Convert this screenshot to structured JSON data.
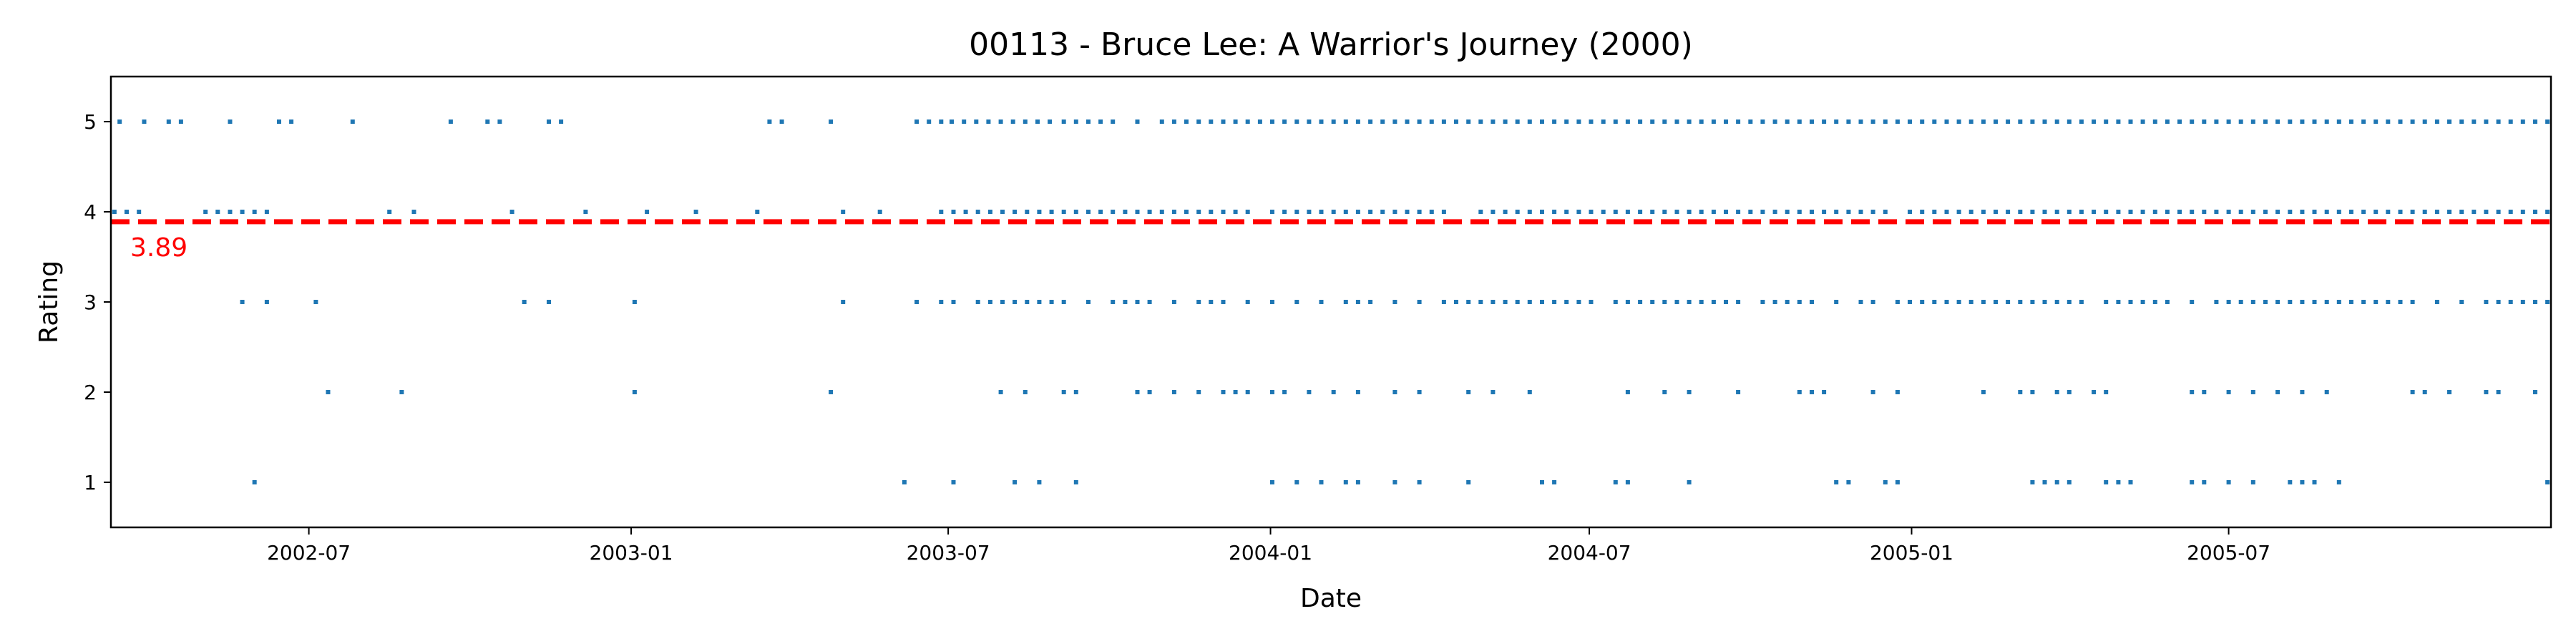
{
  "chart_data": {
    "type": "scatter",
    "title": "00113 - Bruce Lee: A Warrior's Journey (2000)",
    "xlabel": "Date",
    "ylabel": "Rating",
    "x_range": [
      "2002-03-10",
      "2006-01-01"
    ],
    "ylim": [
      0.5,
      5.5
    ],
    "x_ticks": [
      "2002-07",
      "2003-01",
      "2003-07",
      "2004-01",
      "2004-07",
      "2005-01",
      "2005-07"
    ],
    "y_ticks": [
      1,
      2,
      3,
      4,
      5
    ],
    "grid": false,
    "point_color": "#1f77b4",
    "mean": {
      "value": 3.89,
      "label": "3.89",
      "color": "#ff0000",
      "style": "dashed"
    },
    "series": [
      {
        "rating": 5,
        "dates": [
          "2002-03-15",
          "2002-03-29",
          "2002-04-12",
          "2002-04-19",
          "2002-05-17",
          "2002-06-14",
          "2002-06-21",
          "2002-07-26",
          "2002-09-20",
          "2002-10-11",
          "2002-10-18",
          "2002-11-15",
          "2002-11-22",
          "2003-03-21",
          "2003-03-28",
          "2003-04-25",
          "2003-06-13",
          "2003-06-20",
          "2003-06-27",
          "2003-07-03",
          "2003-07-10",
          "2003-07-17",
          "2003-07-24",
          "2003-07-31",
          "2003-08-07",
          "2003-08-14",
          "2003-08-21",
          "2003-08-28",
          "2003-09-05",
          "2003-09-12",
          "2003-09-19",
          "2003-09-26",
          "2003-10-03",
          "2003-10-17",
          "2003-10-31",
          "2003-11-07",
          "2003-11-14",
          "2003-11-21",
          "2003-11-28",
          "2003-12-05",
          "2003-12-12",
          "2003-12-19",
          "2003-12-26",
          "2004-01-02",
          "2004-01-09",
          "2004-01-16",
          "2004-01-23",
          "2004-01-30",
          "2004-02-06",
          "2004-02-13",
          "2004-02-20",
          "2004-02-27",
          "2004-03-05",
          "2004-03-12",
          "2004-03-19",
          "2004-03-26",
          "2004-04-02",
          "2004-04-09",
          "2004-04-16",
          "2004-04-23",
          "2004-04-30",
          "2004-05-07",
          "2004-05-14",
          "2004-05-21",
          "2004-05-28",
          "2004-06-04",
          "2004-06-11",
          "2004-06-18",
          "2004-06-25",
          "2004-07-02",
          "2004-07-09",
          "2004-07-16",
          "2004-07-23",
          "2004-07-30",
          "2004-08-06",
          "2004-08-13",
          "2004-08-20",
          "2004-08-27",
          "2004-09-03",
          "2004-09-10",
          "2004-09-17",
          "2004-09-24",
          "2004-10-01",
          "2004-10-08",
          "2004-10-15",
          "2004-10-22",
          "2004-10-29",
          "2004-11-05",
          "2004-11-12",
          "2004-11-19",
          "2004-11-26",
          "2004-12-03",
          "2004-12-10",
          "2004-12-17",
          "2004-12-24",
          "2004-12-31",
          "2005-01-07",
          "2005-01-14",
          "2005-01-21",
          "2005-01-28",
          "2005-02-04",
          "2005-02-11",
          "2005-02-18",
          "2005-02-25",
          "2005-03-04",
          "2005-03-11",
          "2005-03-18",
          "2005-03-25",
          "2005-04-01",
          "2005-04-08",
          "2005-04-15",
          "2005-04-22",
          "2005-04-29",
          "2005-05-06",
          "2005-05-13",
          "2005-05-20",
          "2005-05-27",
          "2005-06-03",
          "2005-06-10",
          "2005-06-17",
          "2005-06-24",
          "2005-07-01",
          "2005-07-08",
          "2005-07-15",
          "2005-07-22",
          "2005-07-29",
          "2005-08-05",
          "2005-08-12",
          "2005-08-19",
          "2005-08-26",
          "2005-09-02",
          "2005-09-09",
          "2005-09-16",
          "2005-09-23",
          "2005-09-30",
          "2005-10-07",
          "2005-10-14",
          "2005-10-21",
          "2005-10-28",
          "2005-11-04",
          "2005-11-11",
          "2005-11-18",
          "2005-11-25",
          "2005-12-02",
          "2005-12-09",
          "2005-12-16",
          "2005-12-23",
          "2005-12-30"
        ]
      },
      {
        "rating": 4,
        "dates": [
          "2002-03-12",
          "2002-03-19",
          "2002-03-26",
          "2002-05-03",
          "2002-05-10",
          "2002-05-17",
          "2002-05-24",
          "2002-05-31",
          "2002-06-07",
          "2002-08-16",
          "2002-08-30",
          "2002-10-25",
          "2002-12-06",
          "2003-01-10",
          "2003-02-07",
          "2003-03-14",
          "2003-05-02",
          "2003-05-23",
          "2003-06-27",
          "2003-07-04",
          "2003-07-11",
          "2003-07-18",
          "2003-07-25",
          "2003-08-01",
          "2003-08-08",
          "2003-08-15",
          "2003-08-22",
          "2003-08-29",
          "2003-09-05",
          "2003-09-12",
          "2003-09-19",
          "2003-09-26",
          "2003-10-03",
          "2003-10-10",
          "2003-10-17",
          "2003-10-24",
          "2003-10-31",
          "2003-11-07",
          "2003-11-14",
          "2003-11-21",
          "2003-11-28",
          "2003-12-05",
          "2003-12-12",
          "2003-12-19",
          "2004-01-02",
          "2004-01-09",
          "2004-01-16",
          "2004-01-23",
          "2004-01-30",
          "2004-02-06",
          "2004-02-13",
          "2004-02-20",
          "2004-02-27",
          "2004-03-05",
          "2004-03-12",
          "2004-03-19",
          "2004-03-26",
          "2004-04-02",
          "2004-04-09",
          "2004-04-30",
          "2004-05-07",
          "2004-05-14",
          "2004-05-21",
          "2004-05-28",
          "2004-06-04",
          "2004-06-11",
          "2004-06-18",
          "2004-06-25",
          "2004-07-02",
          "2004-07-09",
          "2004-07-16",
          "2004-07-23",
          "2004-07-30",
          "2004-08-06",
          "2004-08-13",
          "2004-08-20",
          "2004-08-27",
          "2004-09-03",
          "2004-09-10",
          "2004-09-17",
          "2004-09-24",
          "2004-10-01",
          "2004-10-08",
          "2004-10-15",
          "2004-10-22",
          "2004-10-29",
          "2004-11-05",
          "2004-11-12",
          "2004-11-19",
          "2004-11-26",
          "2004-12-03",
          "2004-12-10",
          "2004-12-17",
          "2004-12-31",
          "2005-01-07",
          "2005-01-14",
          "2005-01-21",
          "2005-01-28",
          "2005-02-04",
          "2005-02-11",
          "2005-02-18",
          "2005-02-25",
          "2005-03-04",
          "2005-03-11",
          "2005-03-18",
          "2005-03-25",
          "2005-04-01",
          "2005-04-08",
          "2005-04-15",
          "2005-04-22",
          "2005-04-29",
          "2005-05-06",
          "2005-05-13",
          "2005-05-20",
          "2005-05-27",
          "2005-06-03",
          "2005-06-10",
          "2005-06-17",
          "2005-06-24",
          "2005-07-01",
          "2005-07-08",
          "2005-07-15",
          "2005-07-22",
          "2005-07-29",
          "2005-08-05",
          "2005-08-12",
          "2005-08-19",
          "2005-08-26",
          "2005-09-02",
          "2005-09-09",
          "2005-09-16",
          "2005-09-23",
          "2005-09-30",
          "2005-10-07",
          "2005-10-14",
          "2005-10-21",
          "2005-10-28",
          "2005-11-04",
          "2005-11-11",
          "2005-11-18",
          "2005-11-25",
          "2005-12-02",
          "2005-12-09",
          "2005-12-16",
          "2005-12-23",
          "2005-12-30"
        ]
      },
      {
        "rating": 3,
        "dates": [
          "2002-05-24",
          "2002-06-07",
          "2002-07-05",
          "2002-11-01",
          "2002-11-15",
          "2003-01-03",
          "2003-05-02",
          "2003-06-13",
          "2003-06-27",
          "2003-07-04",
          "2003-07-18",
          "2003-07-25",
          "2003-08-01",
          "2003-08-08",
          "2003-08-15",
          "2003-08-22",
          "2003-08-29",
          "2003-09-05",
          "2003-09-19",
          "2003-10-03",
          "2003-10-10",
          "2003-10-17",
          "2003-10-24",
          "2003-11-07",
          "2003-11-21",
          "2003-11-28",
          "2003-12-05",
          "2003-12-19",
          "2004-01-02",
          "2004-01-16",
          "2004-01-30",
          "2004-02-13",
          "2004-02-20",
          "2004-02-27",
          "2004-03-12",
          "2004-03-26",
          "2004-04-09",
          "2004-04-16",
          "2004-04-23",
          "2004-04-30",
          "2004-05-07",
          "2004-05-14",
          "2004-05-21",
          "2004-05-28",
          "2004-06-04",
          "2004-06-11",
          "2004-06-18",
          "2004-06-25",
          "2004-07-02",
          "2004-07-16",
          "2004-07-23",
          "2004-07-30",
          "2004-08-06",
          "2004-08-13",
          "2004-08-20",
          "2004-08-27",
          "2004-09-03",
          "2004-09-10",
          "2004-09-17",
          "2004-09-24",
          "2004-10-08",
          "2004-10-15",
          "2004-10-22",
          "2004-10-29",
          "2004-11-05",
          "2004-11-19",
          "2004-12-03",
          "2004-12-10",
          "2004-12-24",
          "2004-12-31",
          "2005-01-07",
          "2005-01-14",
          "2005-01-21",
          "2005-01-28",
          "2005-02-04",
          "2005-02-11",
          "2005-02-18",
          "2005-02-25",
          "2005-03-04",
          "2005-03-11",
          "2005-03-18",
          "2005-03-25",
          "2005-04-01",
          "2005-04-08",
          "2005-04-22",
          "2005-04-29",
          "2005-05-06",
          "2005-05-13",
          "2005-05-20",
          "2005-05-27",
          "2005-06-10",
          "2005-06-24",
          "2005-07-01",
          "2005-07-08",
          "2005-07-15",
          "2005-07-22",
          "2005-07-29",
          "2005-08-05",
          "2005-08-12",
          "2005-08-19",
          "2005-08-26",
          "2005-09-02",
          "2005-09-09",
          "2005-09-16",
          "2005-09-23",
          "2005-09-30",
          "2005-10-07",
          "2005-10-14",
          "2005-10-28",
          "2005-11-11",
          "2005-11-25",
          "2005-12-02",
          "2005-12-09",
          "2005-12-16",
          "2005-12-23",
          "2005-12-30"
        ]
      },
      {
        "rating": 2,
        "dates": [
          "2002-07-12",
          "2002-08-23",
          "2003-01-03",
          "2003-04-25",
          "2003-07-31",
          "2003-08-14",
          "2003-09-05",
          "2003-09-12",
          "2003-10-17",
          "2003-10-24",
          "2003-11-07",
          "2003-11-21",
          "2003-12-05",
          "2003-12-12",
          "2003-12-19",
          "2004-01-02",
          "2004-01-09",
          "2004-01-23",
          "2004-02-06",
          "2004-02-20",
          "2004-03-12",
          "2004-03-26",
          "2004-04-23",
          "2004-05-07",
          "2004-05-28",
          "2004-07-23",
          "2004-08-13",
          "2004-08-27",
          "2004-09-24",
          "2004-10-29",
          "2004-11-05",
          "2004-11-12",
          "2004-12-10",
          "2004-12-24",
          "2005-02-11",
          "2005-03-04",
          "2005-03-11",
          "2005-03-25",
          "2005-04-01",
          "2005-04-15",
          "2005-04-22",
          "2005-06-10",
          "2005-06-17",
          "2005-07-01",
          "2005-07-15",
          "2005-07-29",
          "2005-08-12",
          "2005-08-26",
          "2005-10-14",
          "2005-10-21",
          "2005-11-04",
          "2005-11-25",
          "2005-12-02",
          "2005-12-23"
        ]
      },
      {
        "rating": 1,
        "dates": [
          "2002-05-31",
          "2003-06-06",
          "2003-07-04",
          "2003-08-08",
          "2003-08-22",
          "2003-09-12",
          "2004-01-02",
          "2004-01-16",
          "2004-01-30",
          "2004-02-13",
          "2004-02-20",
          "2004-03-12",
          "2004-03-26",
          "2004-04-23",
          "2004-06-04",
          "2004-06-11",
          "2004-07-16",
          "2004-07-23",
          "2004-08-27",
          "2004-11-19",
          "2004-11-26",
          "2004-12-17",
          "2004-12-24",
          "2005-03-11",
          "2005-03-18",
          "2005-03-25",
          "2005-04-01",
          "2005-04-22",
          "2005-04-29",
          "2005-05-06",
          "2005-06-10",
          "2005-06-17",
          "2005-07-01",
          "2005-07-15",
          "2005-08-05",
          "2005-08-12",
          "2005-08-19",
          "2005-09-02",
          "2005-12-30"
        ]
      }
    ]
  }
}
